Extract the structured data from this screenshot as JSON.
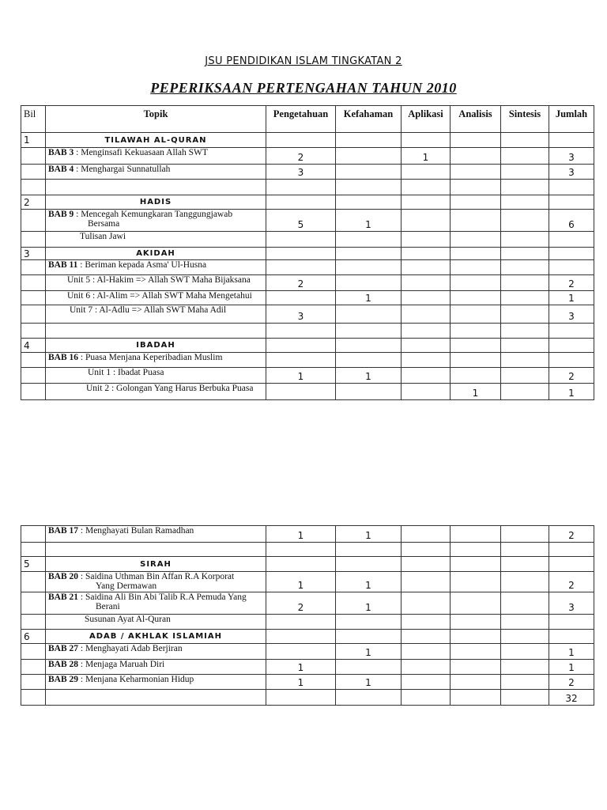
{
  "header": {
    "subject": "JSU PENDIDIKAN ISLAM TINGKATAN 2",
    "exam": "PEPERIKSAAN PERTENGAHAN TAHUN 2010"
  },
  "columns": [
    "Bil",
    "Topik",
    "Pengetahuan",
    "Kefahaman",
    "Aplikasi",
    "Analisis",
    "Sintesis",
    "Jumlah"
  ],
  "table1": [
    {
      "type": "section",
      "bil": "1",
      "title": "TILAWAH AL-QURAN"
    },
    {
      "type": "item",
      "bab": "BAB 3",
      "text": " : Menginsafi Kekuasaan Allah SWT",
      "values": [
        "2",
        "",
        "1",
        "",
        "",
        "3"
      ]
    },
    {
      "type": "item",
      "bab": "BAB 4",
      "text": " : Menghargai Sunnatullah",
      "values": [
        "3",
        "",
        "",
        "",
        "",
        "3"
      ]
    },
    {
      "type": "blank"
    },
    {
      "type": "section",
      "bil": "2",
      "title": "HADIS"
    },
    {
      "type": "item",
      "bab": "BAB 9",
      "text": " : Mencegah Kemungkaran Tanggungjawab",
      "cont": "Bersama",
      "values": [
        "5",
        "1",
        "",
        "",
        "",
        "6"
      ]
    },
    {
      "type": "item",
      "indent": 40,
      "text": "Tulisan Jawi",
      "values": [
        "",
        "",
        "",
        "",
        "",
        ""
      ]
    },
    {
      "type": "section",
      "bil": "3",
      "title": "AKIDAH"
    },
    {
      "type": "item",
      "bab": "BAB 11",
      "text": " : Beriman kepada Asma' Ul-Husna",
      "values": [
        "",
        "",
        "",
        "",
        "",
        ""
      ]
    },
    {
      "type": "item",
      "indent": 24,
      "text": "Unit 5 : Al-Hakim => Allah SWT Maha Bijaksana",
      "values": [
        "2",
        "",
        "",
        "",
        "",
        "2"
      ]
    },
    {
      "type": "item",
      "indent": 24,
      "text": "Unit 6 : Al-Alim => Allah SWT Maha Mengetahui",
      "values": [
        "",
        "1",
        "",
        "",
        "",
        "1"
      ]
    },
    {
      "type": "item",
      "indent": 27,
      "text": "Unit 7 : Al-Adlu => Allah SWT Maha Adil",
      "values": [
        "3",
        "",
        "",
        "",
        "",
        "3"
      ]
    },
    {
      "type": "blank"
    },
    {
      "type": "section",
      "bil": "4",
      "title": "IBADAH"
    },
    {
      "type": "item",
      "bab": "BAB 16",
      "text": " : Puasa Menjana Keperibadian Muslim",
      "values": [
        "",
        "",
        "",
        "",
        "",
        ""
      ]
    },
    {
      "type": "item",
      "indent": 50,
      "text": "Unit 1 : Ibadat Puasa",
      "values": [
        "1",
        "1",
        "",
        "",
        "",
        "2"
      ]
    },
    {
      "type": "item",
      "indent": 48,
      "text": "Unit 2 : Golongan Yang Harus Berbuka Puasa",
      "values": [
        "",
        "",
        "",
        "1",
        "",
        "1"
      ]
    }
  ],
  "table2": [
    {
      "type": "item",
      "bab": "BAB 17",
      "text": " : Menghayati Bulan Ramadhan",
      "values": [
        "1",
        "1",
        "",
        "",
        "",
        "2"
      ]
    },
    {
      "type": "blank"
    },
    {
      "type": "section",
      "bil": "5",
      "title": "SIRAH"
    },
    {
      "type": "item",
      "bab": "BAB 20",
      "text": " : Saidina Uthman Bin Affan R.A Korporat",
      "cont": "Yang Dermawan",
      "values": [
        "1",
        "1",
        "",
        "",
        "",
        "2"
      ]
    },
    {
      "type": "item",
      "bab": "BAB 21",
      "text": " : Saidina Ali Bin Abi Talib R.A Pemuda Yang",
      "cont": "Berani",
      "values": [
        "2",
        "1",
        "",
        "",
        "",
        "3"
      ]
    },
    {
      "type": "item",
      "indent": 46,
      "text": "Susunan Ayat Al-Quran",
      "values": [
        "",
        "",
        "",
        "",
        "",
        ""
      ]
    },
    {
      "type": "section",
      "bil": "6",
      "title": "ADAB / AKHLAK ISLAMIAH"
    },
    {
      "type": "item",
      "bab": "BAB 27",
      "text": " : Menghayati Adab Berjiran",
      "values": [
        "",
        "1",
        "",
        "",
        "",
        "1"
      ]
    },
    {
      "type": "item",
      "bab": "BAB 28",
      "text": " : Menjaga Maruah Diri",
      "values": [
        "1",
        "",
        "",
        "",
        "",
        "1"
      ]
    },
    {
      "type": "item",
      "bab": "BAB 29",
      "text": " : Menjana Keharmonian Hidup",
      "values": [
        "1",
        "1",
        "",
        "",
        "",
        "2"
      ]
    },
    {
      "type": "total",
      "values": [
        "",
        "",
        "",
        "",
        "",
        "32"
      ]
    }
  ]
}
